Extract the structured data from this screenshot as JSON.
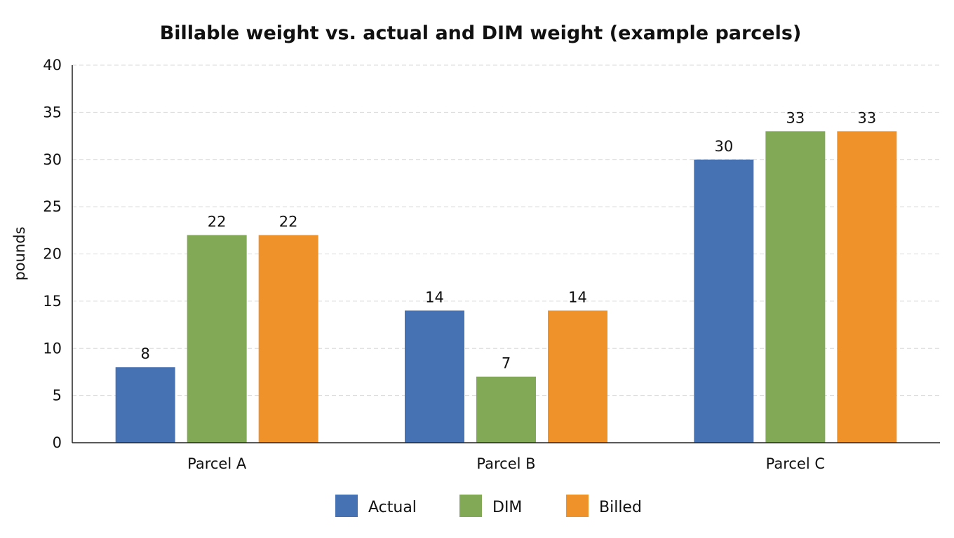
{
  "chart_data": {
    "type": "bar",
    "title": "Billable weight vs. actual and DIM weight (example parcels)",
    "xlabel": "",
    "ylabel": "pounds",
    "ylim": [
      0,
      40
    ],
    "yticks": [
      0,
      5,
      10,
      15,
      20,
      25,
      30,
      35,
      40
    ],
    "grid": true,
    "legend_position": "bottom-center",
    "categories": [
      "Parcel A",
      "Parcel B",
      "Parcel C"
    ],
    "series": [
      {
        "name": "Actual",
        "values": [
          8,
          14,
          30
        ],
        "color": "#4672b4"
      },
      {
        "name": "DIM",
        "values": [
          22,
          7,
          33
        ],
        "color": "#82a955"
      },
      {
        "name": "Billed",
        "values": [
          22,
          14,
          33
        ],
        "color": "#ef922a"
      }
    ]
  }
}
